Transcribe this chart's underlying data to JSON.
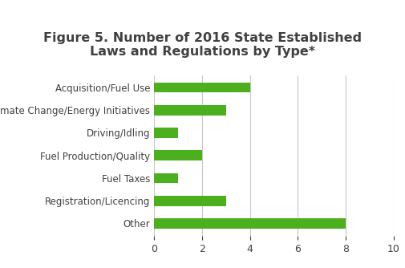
{
  "title": "Figure 5. Number of 2016 State Established\nLaws and Regulations by Type*",
  "categories": [
    "Other",
    "Registration/Licencing",
    "Fuel Taxes",
    "Fuel Production/Quality",
    "Driving/Idling",
    "Climate Change/Energy Initiatives",
    "Acquisition/Fuel Use"
  ],
  "values": [
    8,
    3,
    1,
    2,
    1,
    3,
    4
  ],
  "bar_color": "#4caf1e",
  "xlim": [
    0,
    10
  ],
  "xticks": [
    0,
    2,
    4,
    6,
    8,
    10
  ],
  "title_fontsize": 11.5,
  "title_color": "#404040",
  "label_fontsize": 8.5,
  "tick_fontsize": 9,
  "background_color": "#ffffff",
  "grid_color": "#c8c8c8"
}
